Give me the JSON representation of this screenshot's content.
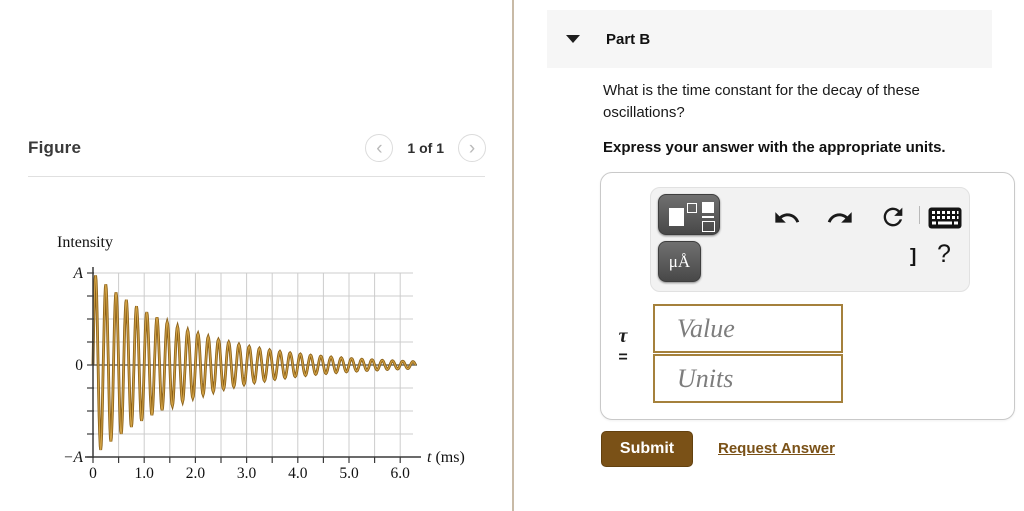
{
  "app": {
    "divider_color": "#c8baa6"
  },
  "figure_panel": {
    "title": "Figure",
    "pager": {
      "prev_icon": "‹",
      "next_icon": "›",
      "current": "1 of 1"
    }
  },
  "chart_data": {
    "type": "line",
    "title": "",
    "ylabel": "Intensity",
    "xlabel": "t (ms)",
    "x_tick_labels": [
      "0",
      "1.0",
      "2.0",
      "3.0",
      "4.0",
      "5.0",
      "6.0"
    ],
    "x_tick_values": [
      0,
      1,
      2,
      3,
      4,
      5,
      6
    ],
    "y_tick_labels": [
      "A",
      "0",
      "−A"
    ],
    "y_tick_values": [
      1,
      0,
      -1
    ],
    "x_range_ms": [
      0,
      6.3
    ],
    "y_range_A": [
      -1,
      1
    ],
    "grid": {
      "on": true,
      "x_step_ms": 0.5,
      "y_step_A": 0.25,
      "color": "#cccccc"
    },
    "signal": {
      "model": "damped_sine",
      "formula": "I(t) = A·e^(−t/τ)·sin(2πt/T)",
      "amplitude_A": 1,
      "period_ms": 0.2,
      "time_constant_ms": 1.9,
      "t_max_ms": 6.3
    },
    "curve_color_outer": "#8a6019",
    "curve_color_inner": "#d2a245",
    "axis_color": "#3a3a3a",
    "zero_line_color": "#4a4a42"
  },
  "part_b": {
    "collapse_icon": "triangle-down",
    "title": "Part B",
    "question": "What is the time constant for the decay of these oscillations?",
    "instruction": "Express your answer with the appropriate units.",
    "answer": {
      "symbol": "τ",
      "equals": "=",
      "value_placeholder": "Value",
      "units_placeholder": "Units",
      "toolbar": {
        "template_button": "math-templates",
        "units_button_label": "μÅ",
        "undo": "undo",
        "redo": "redo",
        "reset": "reset",
        "keyboard": "keyboard",
        "bracket_glyph": "]",
        "help_label": "?"
      }
    },
    "submit_label": "Submit",
    "request_answer_label": "Request Answer",
    "accent_color": "#7a5117"
  }
}
